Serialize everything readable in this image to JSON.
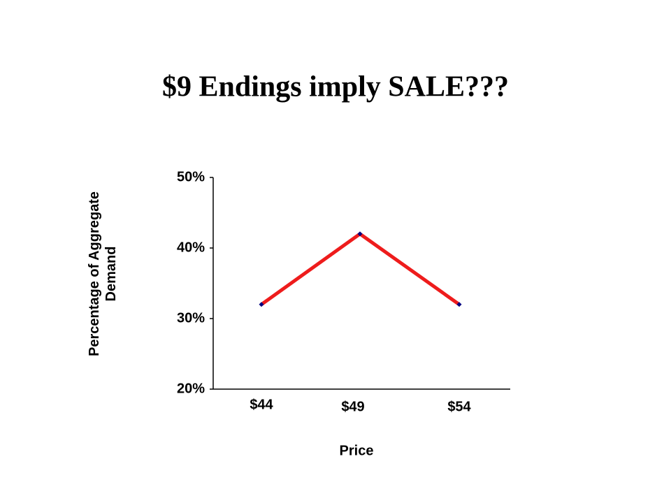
{
  "chart_data": {
    "type": "line",
    "title": "$9 Endings imply SALE???",
    "x_label": "Price",
    "y_label": "Percentage of Aggregate Demand",
    "categories": [
      "$44",
      "$49",
      "$54"
    ],
    "series": [
      {
        "name": null,
        "color": "#ee1c1c",
        "marker_color": "#000080",
        "values": [
          32,
          42,
          32
        ]
      }
    ],
    "ylim": [
      20,
      50
    ],
    "yticks": [
      {
        "value": 20,
        "label": "20%"
      },
      {
        "value": 30,
        "label": "30%"
      },
      {
        "value": 40,
        "label": "40%"
      },
      {
        "value": 50,
        "label": "50%"
      }
    ]
  }
}
